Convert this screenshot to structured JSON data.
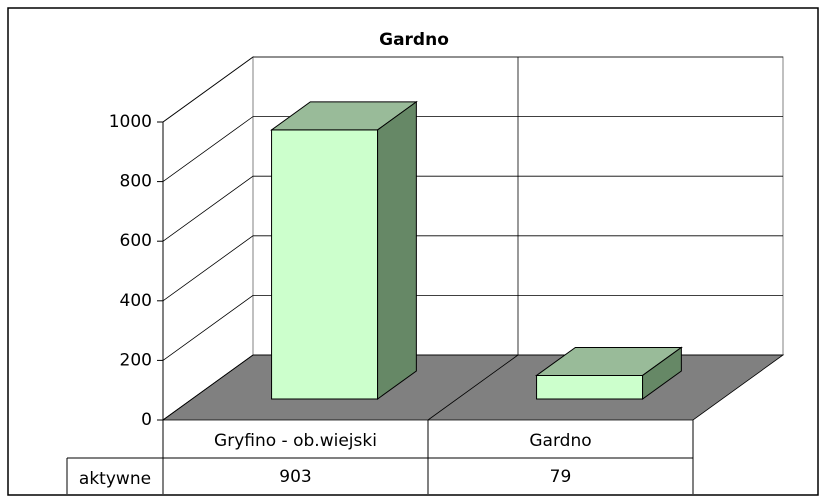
{
  "chart_data": {
    "type": "bar3d",
    "title": "Gardno",
    "categories": [
      "Gryfino - ob.wiejski",
      "Gardno"
    ],
    "series": [
      {
        "name": "aktywne",
        "color": "#ccffcc",
        "values": [
          903,
          79
        ]
      }
    ],
    "ylim": [
      0,
      1000
    ],
    "yticks": [
      0,
      200,
      400,
      600,
      800,
      1000
    ],
    "grid": true
  }
}
